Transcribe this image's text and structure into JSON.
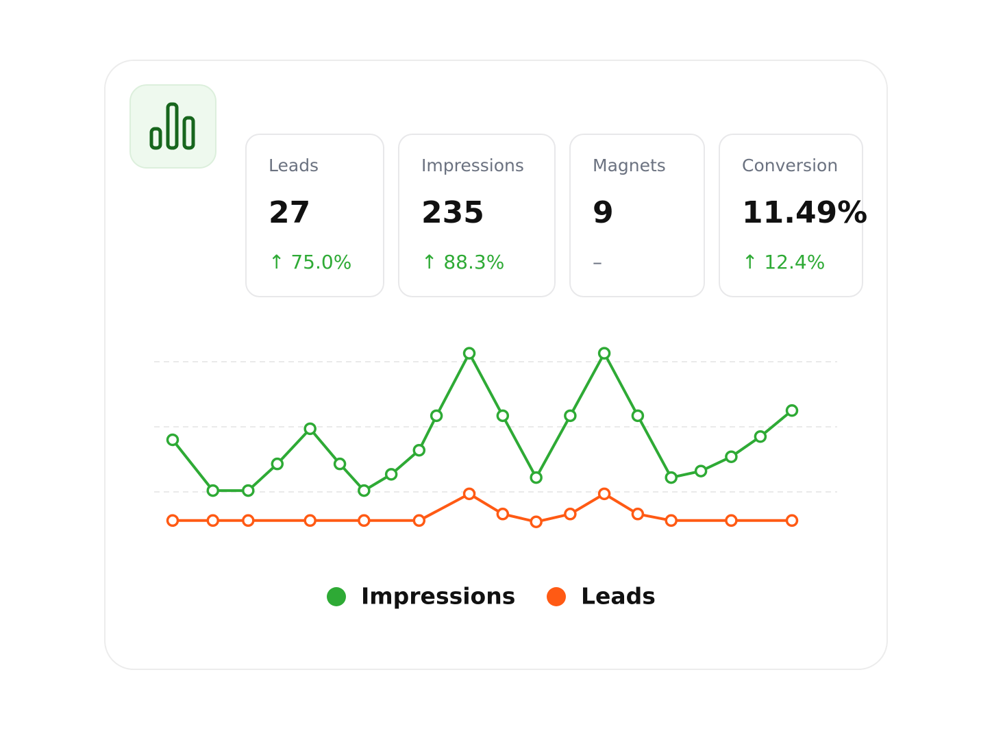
{
  "stats": [
    {
      "label": "Leads",
      "value": "27",
      "change": "↑ 75.0%"
    },
    {
      "label": "Impressions",
      "value": "235",
      "change": "↑ 88.3%"
    },
    {
      "label": "Magnets",
      "value": "9",
      "change": "–"
    },
    {
      "label": "Conversion",
      "value": "11.49%",
      "change": "↑ 12.4%"
    }
  ],
  "chart_data": {
    "type": "line",
    "xlim": [
      0,
      100
    ],
    "ylim": [
      0,
      4
    ],
    "yticks": [
      1,
      2,
      3
    ],
    "grid": true,
    "series": [
      {
        "name": "Impressions",
        "color": "#2eaa35",
        "x": [
          0,
          6.5,
          12.2,
          16.9,
          22.2,
          27,
          30.9,
          35.3,
          39.8,
          42.6,
          47.9,
          53.3,
          58.7,
          64.2,
          69.7,
          75.1,
          80.5,
          85.3,
          90.2,
          94.9,
          100
        ],
        "values": [
          1.8,
          1.02,
          1.02,
          1.43,
          1.97,
          1.43,
          1.02,
          1.27,
          1.64,
          2.17,
          3.13,
          2.17,
          1.22,
          2.17,
          3.13,
          2.17,
          1.22,
          1.32,
          1.54,
          1.85,
          2.25
        ]
      },
      {
        "name": "Leads",
        "color": "#ff5a14",
        "x": [
          0,
          6.5,
          12.2,
          22.2,
          30.9,
          39.8,
          47.9,
          53.3,
          58.7,
          64.2,
          69.7,
          75.1,
          80.5,
          90.2,
          100
        ],
        "values": [
          0.56,
          0.56,
          0.56,
          0.56,
          0.56,
          0.56,
          0.97,
          0.66,
          0.54,
          0.66,
          0.97,
          0.66,
          0.56,
          0.56,
          0.56
        ]
      }
    ]
  }
}
